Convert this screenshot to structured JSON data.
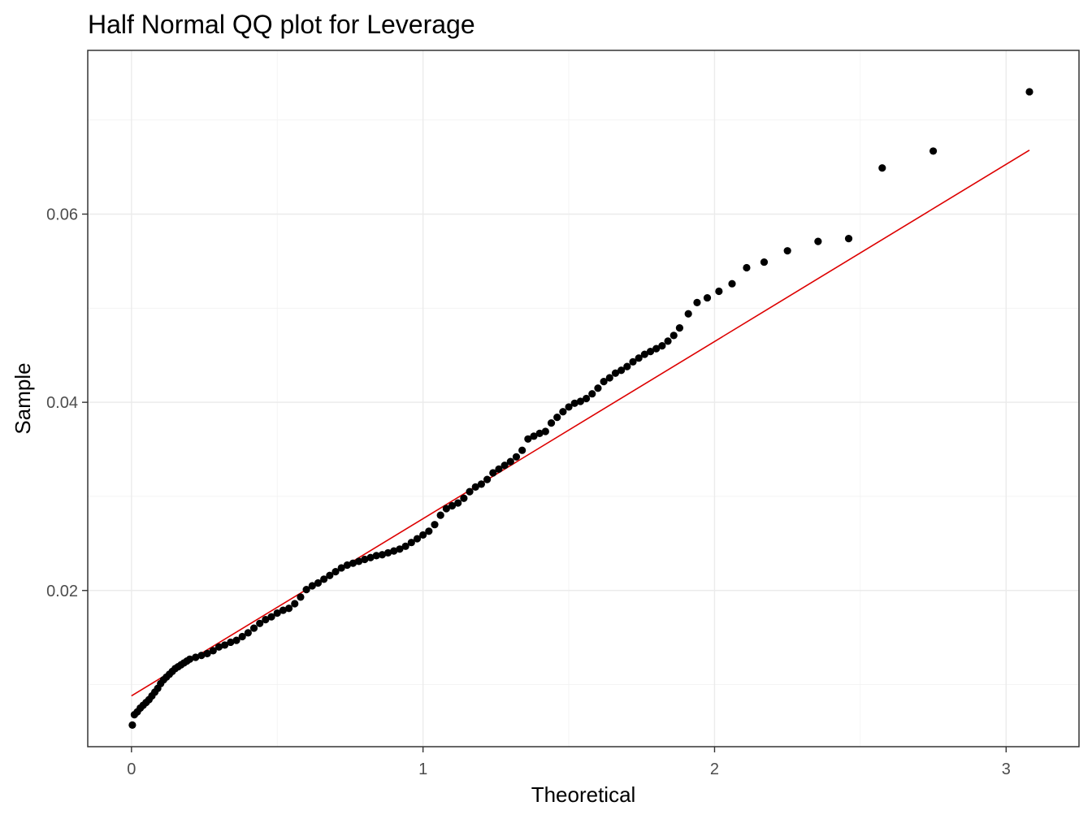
{
  "chart_data": {
    "type": "scatter",
    "title": "Half Normal QQ plot for Leverage",
    "xlabel": "Theoretical",
    "ylabel": "Sample",
    "xlim": [
      -0.15,
      3.25
    ],
    "ylim": [
      0.0034,
      0.0774
    ],
    "xticks": [
      0,
      1,
      2,
      3
    ],
    "xtick_labels": [
      "0",
      "1",
      "2",
      "3"
    ],
    "yticks": [
      0.02,
      0.04,
      0.06
    ],
    "ytick_labels": [
      "0.02",
      "0.04",
      "0.06"
    ],
    "grid": true,
    "legend": "none",
    "point_color": "#000000",
    "line_color": "#dd0000",
    "reference_line": {
      "x": [
        0,
        3.08
      ],
      "y": [
        0.0088,
        0.0668
      ]
    },
    "points": [
      [
        0.003,
        0.0057
      ],
      [
        0.01,
        0.0068
      ],
      [
        0.02,
        0.0071
      ],
      [
        0.03,
        0.0075
      ],
      [
        0.04,
        0.0078
      ],
      [
        0.05,
        0.0081
      ],
      [
        0.06,
        0.0084
      ],
      [
        0.07,
        0.0088
      ],
      [
        0.08,
        0.0092
      ],
      [
        0.09,
        0.0096
      ],
      [
        0.1,
        0.0101
      ],
      [
        0.11,
        0.0105
      ],
      [
        0.12,
        0.0108
      ],
      [
        0.13,
        0.0111
      ],
      [
        0.14,
        0.0114
      ],
      [
        0.15,
        0.0117
      ],
      [
        0.16,
        0.0119
      ],
      [
        0.17,
        0.0121
      ],
      [
        0.18,
        0.0123
      ],
      [
        0.19,
        0.0125
      ],
      [
        0.2,
        0.0127
      ],
      [
        0.22,
        0.0129
      ],
      [
        0.24,
        0.0131
      ],
      [
        0.26,
        0.0133
      ],
      [
        0.28,
        0.0136
      ],
      [
        0.3,
        0.014
      ],
      [
        0.32,
        0.0142
      ],
      [
        0.34,
        0.0145
      ],
      [
        0.36,
        0.0147
      ],
      [
        0.38,
        0.0151
      ],
      [
        0.4,
        0.0155
      ],
      [
        0.42,
        0.016
      ],
      [
        0.44,
        0.0165
      ],
      [
        0.46,
        0.0169
      ],
      [
        0.48,
        0.0172
      ],
      [
        0.5,
        0.0176
      ],
      [
        0.52,
        0.0179
      ],
      [
        0.54,
        0.0181
      ],
      [
        0.56,
        0.0186
      ],
      [
        0.58,
        0.0193
      ],
      [
        0.6,
        0.0201
      ],
      [
        0.62,
        0.0205
      ],
      [
        0.64,
        0.0208
      ],
      [
        0.66,
        0.0212
      ],
      [
        0.68,
        0.0216
      ],
      [
        0.7,
        0.022
      ],
      [
        0.72,
        0.0224
      ],
      [
        0.74,
        0.0227
      ],
      [
        0.76,
        0.0229
      ],
      [
        0.78,
        0.0231
      ],
      [
        0.8,
        0.0233
      ],
      [
        0.82,
        0.0235
      ],
      [
        0.84,
        0.0237
      ],
      [
        0.86,
        0.0238
      ],
      [
        0.88,
        0.024
      ],
      [
        0.9,
        0.0242
      ],
      [
        0.92,
        0.0244
      ],
      [
        0.94,
        0.0247
      ],
      [
        0.96,
        0.0251
      ],
      [
        0.98,
        0.0255
      ],
      [
        1.0,
        0.0259
      ],
      [
        1.02,
        0.0263
      ],
      [
        1.04,
        0.027
      ],
      [
        1.06,
        0.028
      ],
      [
        1.08,
        0.0287
      ],
      [
        1.1,
        0.029
      ],
      [
        1.12,
        0.0293
      ],
      [
        1.14,
        0.0298
      ],
      [
        1.16,
        0.0305
      ],
      [
        1.18,
        0.031
      ],
      [
        1.2,
        0.0313
      ],
      [
        1.22,
        0.0318
      ],
      [
        1.24,
        0.0325
      ],
      [
        1.26,
        0.0329
      ],
      [
        1.28,
        0.0333
      ],
      [
        1.3,
        0.0337
      ],
      [
        1.32,
        0.0342
      ],
      [
        1.34,
        0.0349
      ],
      [
        1.36,
        0.0361
      ],
      [
        1.38,
        0.0364
      ],
      [
        1.4,
        0.0367
      ],
      [
        1.42,
        0.0369
      ],
      [
        1.44,
        0.0378
      ],
      [
        1.46,
        0.0384
      ],
      [
        1.48,
        0.039
      ],
      [
        1.5,
        0.0395
      ],
      [
        1.52,
        0.0399
      ],
      [
        1.54,
        0.0401
      ],
      [
        1.56,
        0.0404
      ],
      [
        1.58,
        0.0409
      ],
      [
        1.6,
        0.0415
      ],
      [
        1.62,
        0.0422
      ],
      [
        1.64,
        0.0426
      ],
      [
        1.66,
        0.0431
      ],
      [
        1.68,
        0.0434
      ],
      [
        1.7,
        0.0438
      ],
      [
        1.72,
        0.0443
      ],
      [
        1.74,
        0.0447
      ],
      [
        1.76,
        0.0451
      ],
      [
        1.78,
        0.0454
      ],
      [
        1.8,
        0.0457
      ],
      [
        1.82,
        0.046
      ],
      [
        1.84,
        0.0465
      ],
      [
        1.86,
        0.0471
      ],
      [
        1.88,
        0.0479
      ],
      [
        1.91,
        0.0494
      ],
      [
        1.94,
        0.0506
      ],
      [
        1.975,
        0.0511
      ],
      [
        2.015,
        0.0518
      ],
      [
        2.06,
        0.0526
      ],
      [
        2.11,
        0.0543
      ],
      [
        2.17,
        0.0549
      ],
      [
        2.25,
        0.0561
      ],
      [
        2.355,
        0.0571
      ],
      [
        2.46,
        0.0574
      ],
      [
        2.575,
        0.0649
      ],
      [
        2.75,
        0.0667
      ],
      [
        3.08,
        0.073
      ]
    ]
  }
}
